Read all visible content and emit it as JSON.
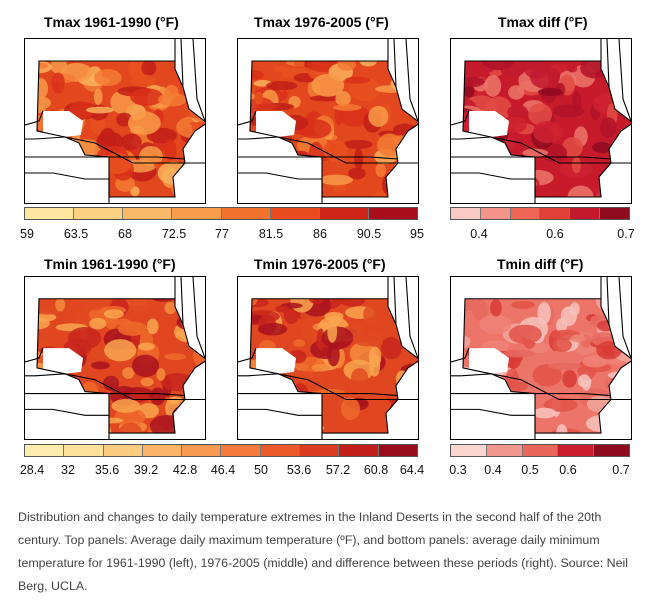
{
  "panels": {
    "tmax_early": {
      "title": "Tmax 1961-1990 (°F)",
      "scale": "abs"
    },
    "tmax_late": {
      "title": "Tmax 1976-2005 (°F)",
      "scale": "abs"
    },
    "tmax_diff": {
      "title": "Tmax diff  (°F)",
      "scale": "diff"
    },
    "tmin_early": {
      "title": "Tmin 1961-1990 (°F)",
      "scale": "abs"
    },
    "tmin_late": {
      "title": "Tmin 1976-2005 (°F)",
      "scale": "abs"
    },
    "tmin_diff": {
      "title": "Tmin diff (°F)",
      "scale": "diff"
    }
  },
  "colorbars": {
    "tmax_abs": {
      "ticks": [
        "59",
        "63.5",
        "68",
        "72.5",
        "77",
        "81.5",
        "86",
        "90.5",
        "95"
      ],
      "colors": [
        "#fde7a0",
        "#fcd281",
        "#fab969",
        "#f89d4c",
        "#f3722e",
        "#e84a1d",
        "#cf2418",
        "#a80e1c"
      ]
    },
    "tmax_diff": {
      "ticks": [
        "0.4",
        "0.6",
        "0.7"
      ],
      "colors": [
        "#f9c9c3",
        "#f49489",
        "#ee6655",
        "#e04035",
        "#c4192a",
        "#8f0b1e"
      ]
    },
    "tmin_abs": {
      "ticks": [
        "28.4",
        "32",
        "35.6",
        "39.2",
        "42.8",
        "46.4",
        "50",
        "53.6",
        "57.2",
        "60.8",
        "64.4"
      ],
      "colors": [
        "#fdeeb0",
        "#fde09a",
        "#fccc80",
        "#fbb468",
        "#f99a52",
        "#f57b3c",
        "#ec5a2a",
        "#dd3b1f",
        "#c31f1b",
        "#980c1c"
      ]
    },
    "tmin_diff": {
      "ticks": [
        "0.3",
        "0.4",
        "0.5",
        "0.6",
        "0.7"
      ],
      "colors": [
        "#fbd5cf",
        "#f2978d",
        "#e9665b",
        "#c91c2c",
        "#8e0b1f"
      ]
    }
  },
  "caption": "Distribution and changes to daily temperature extremes in the Inland Deserts in the second half of the 20th century. Top panels: Average daily maximum temperature (ºF), and bottom panels: average daily minimum temperature for 1961-1990 (left), 1976-2005 (middle) and difference between these periods (right). Source: Neil Berg, UCLA."
}
